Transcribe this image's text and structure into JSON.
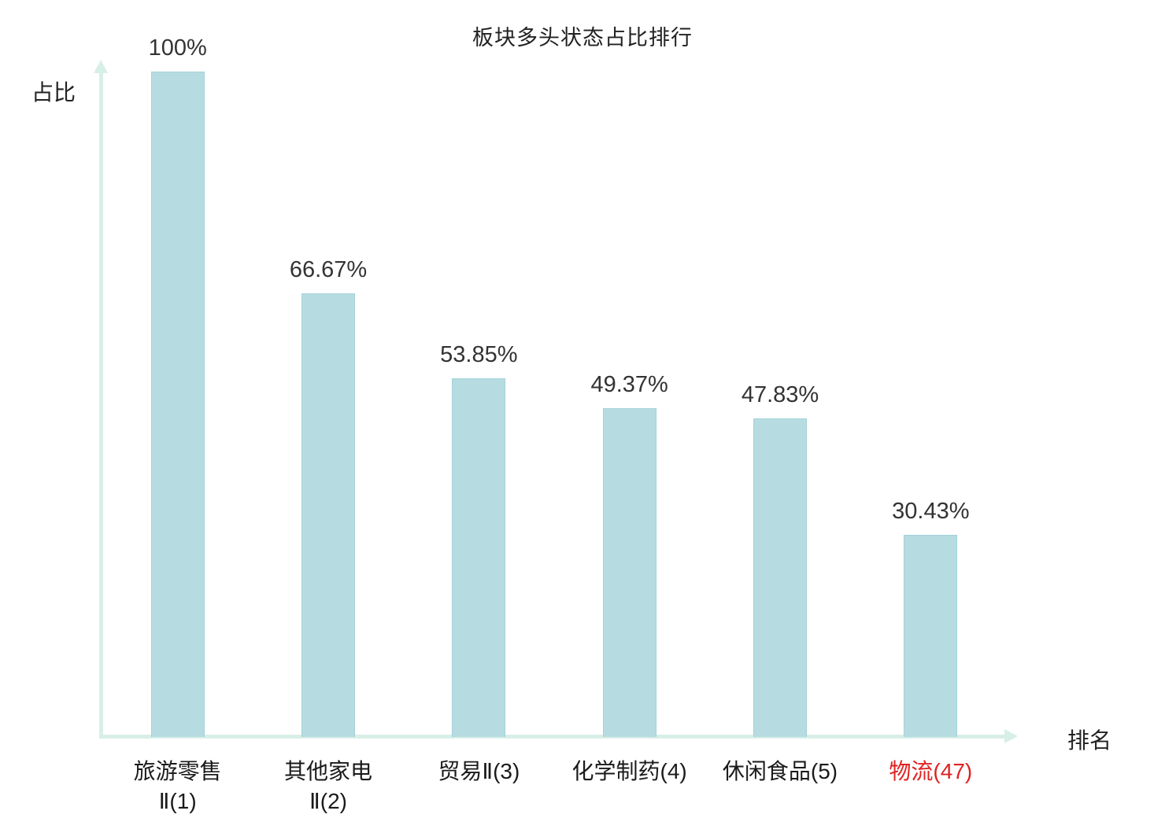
{
  "chart_data": {
    "type": "bar",
    "title": "板块多头状态占比排行",
    "xlabel": "排名",
    "ylabel": "占比",
    "ylim": [
      0,
      100
    ],
    "grid": false,
    "legend": false,
    "categories": [
      "旅游零售Ⅱ(1)",
      "其他家电Ⅱ(2)",
      "贸易Ⅱ(3)",
      "化学制药(4)",
      "休闲食品(5)",
      "物流(47)"
    ],
    "category_lines": [
      [
        "旅游零售",
        "Ⅱ(1)"
      ],
      [
        "其他家电",
        "Ⅱ(2)"
      ],
      [
        "贸易Ⅱ(3)"
      ],
      [
        "化学制药(4)"
      ],
      [
        "休闲食品(5)"
      ],
      [
        "物流(47)"
      ]
    ],
    "values": [
      100,
      66.67,
      53.85,
      49.37,
      47.83,
      30.43
    ],
    "value_labels": [
      "100%",
      "66.67%",
      "53.85%",
      "49.37%",
      "47.83%",
      "30.43%"
    ],
    "highlight_index": 5,
    "bar_color": "#b6dce1",
    "bar_border_color": "#a3d2d8",
    "axis_color": "#d8efe7",
    "text_color": "#333333",
    "highlight_color": "#e02222"
  }
}
